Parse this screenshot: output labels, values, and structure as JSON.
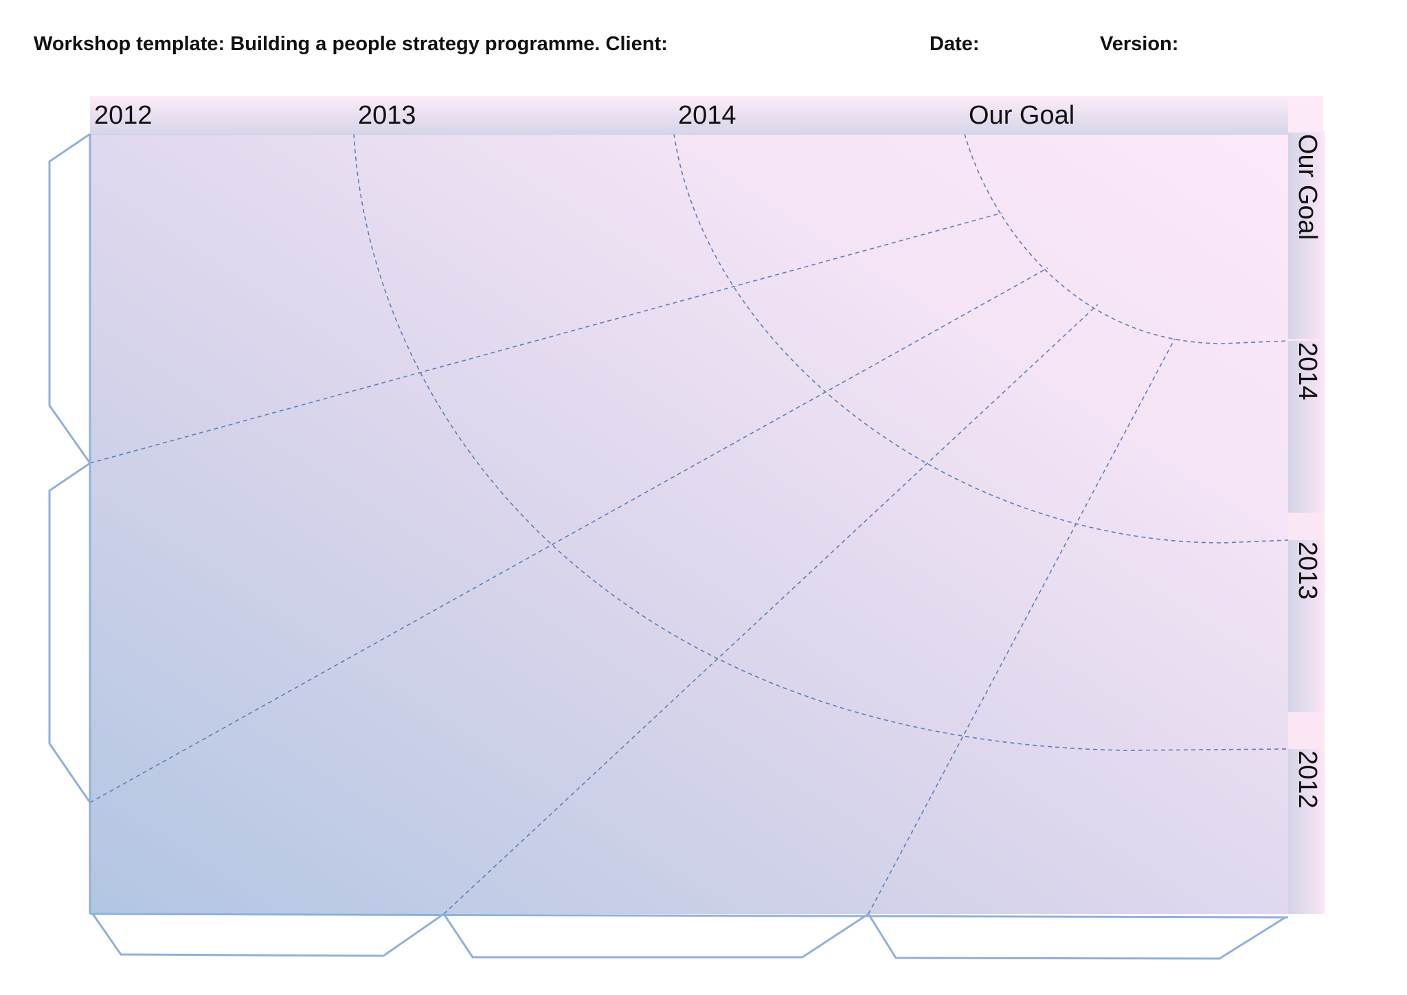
{
  "header": {
    "title": "Workshop template: Building a people strategy programme. Client:",
    "date_label": "Date:",
    "version_label": "Version:"
  },
  "columns": [
    "2012",
    "2013",
    "2014",
    "Our Goal"
  ],
  "rows": [
    "Our Goal",
    "2014",
    "2013",
    "2012"
  ],
  "colors": {
    "board_light": "#fce8f8",
    "board_dark": "#b2c6e2",
    "outline": "#8fb0dc",
    "dashed": "#5a7fb8"
  }
}
